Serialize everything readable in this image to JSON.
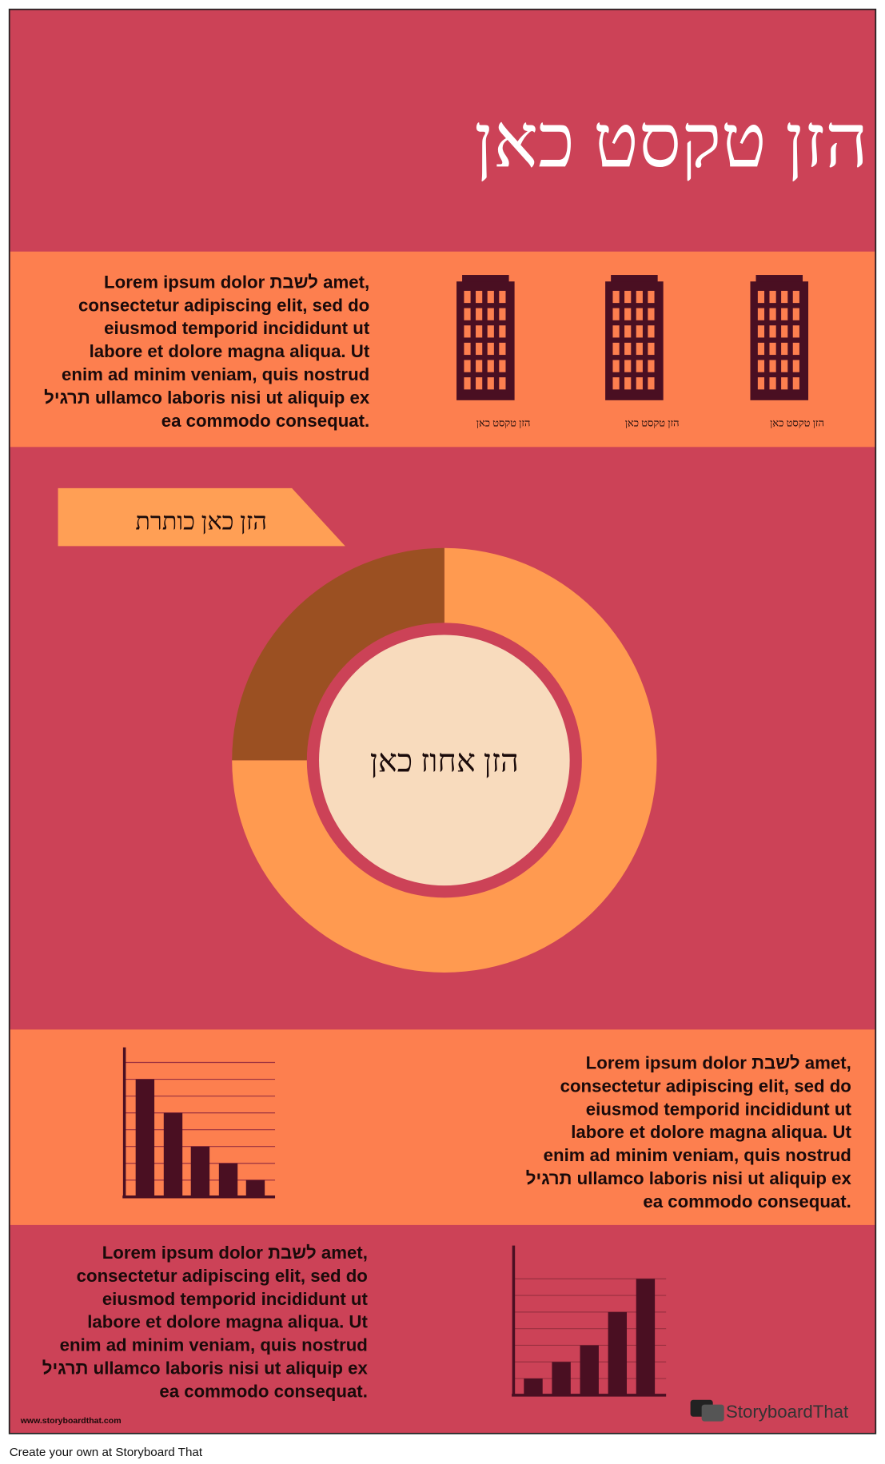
{
  "header": {
    "title": "הזן טקסט כאן"
  },
  "section_1": {
    "paragraph": [
      "Lorem ipsum dolor לשבת amet,",
      "consectetur adipiscing elit, sed do",
      "eiusmod temporid incididunt ut",
      "labore et dolore magna aliqua. Ut",
      "enim ad minim veniam, quis nostrud",
      "תרגיל ullamco laboris nisi ut aliquip ex",
      "ea commodo consequat."
    ],
    "building_labels": [
      "הזן טקסט כאן",
      "הזן טקסט כאן",
      "הזן טקסט כאן"
    ]
  },
  "section_2": {
    "banner": "הזן כאן כותרת",
    "donut": {
      "type": "pie",
      "values": [
        75,
        25
      ],
      "colors": [
        "#ff9a50",
        "#9b5022"
      ],
      "center_label": "הזן אחוז כאן"
    }
  },
  "section_3": {
    "bar_chart": {
      "type": "bar",
      "values": [
        7,
        5,
        3,
        2,
        1
      ],
      "ylim": [
        0,
        8.9
      ],
      "gridlines": [
        1,
        2,
        3,
        4,
        5,
        6,
        7,
        8
      ],
      "color": "#4a0f22"
    },
    "paragraph": [
      "Lorem ipsum dolor לשבת amet,",
      "consectetur adipiscing elit, sed do",
      "eiusmod temporid incididunt ut",
      "labore et dolore magna aliqua. Ut",
      "enim ad minim veniam, quis nostrud",
      "תרגיל ullamco laboris nisi ut aliquip ex",
      "ea commodo consequat."
    ]
  },
  "section_4": {
    "paragraph": [
      "Lorem ipsum dolor לשבת amet,",
      "consectetur adipiscing elit, sed do",
      "eiusmod temporid incididunt ut",
      "labore et dolore magna aliqua. Ut",
      "enim ad minim veniam, quis nostrud",
      "תרגיל ullamco laboris nisi ut aliquip ex",
      "ea commodo consequat."
    ],
    "bar_chart": {
      "type": "bar",
      "values": [
        1,
        2,
        3,
        5,
        7
      ],
      "ylim": [
        0,
        9
      ],
      "gridlines": [
        1,
        2,
        3,
        4,
        5,
        6,
        7
      ],
      "color": "#4a0f22"
    }
  },
  "footer": {
    "url": "www.storyboardthat.com",
    "logo": "StoryboardThat",
    "caption": "Create your own at Storyboard That"
  }
}
